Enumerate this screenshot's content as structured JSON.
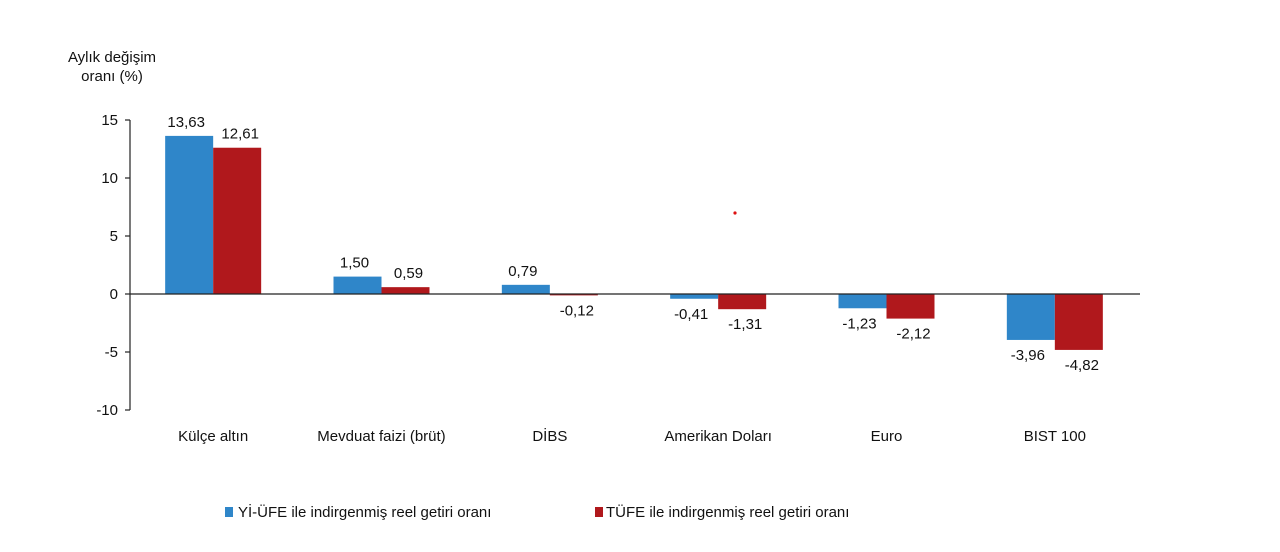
{
  "chart_data": {
    "type": "bar",
    "ylabel_lines": [
      "Aylık değişim",
      "oranı (%)"
    ],
    "categories": [
      "Külçe altın",
      "Mevduat faizi (brüt)",
      "DİBS",
      "Amerikan Doları",
      "Euro",
      "BIST 100"
    ],
    "series": [
      {
        "name": "Yİ-ÜFE ile indirgenmiş reel getiri oranı",
        "color": "#2f86c9",
        "values": [
          13.63,
          1.5,
          0.79,
          -0.41,
          -1.23,
          -3.96
        ],
        "labels": [
          "13,63",
          "1,50",
          "0,79",
          "-0,41",
          "-1,23",
          "-3,96"
        ]
      },
      {
        "name": "TÜFE ile indirgenmiş reel getiri oranı",
        "color": "#b0181c",
        "values": [
          12.61,
          0.59,
          -0.12,
          -1.31,
          -2.12,
          -4.82
        ],
        "labels": [
          "12,61",
          "0,59",
          "-0,12",
          "-1,31",
          "-2,12",
          "-4,82"
        ]
      }
    ],
    "ylim": [
      -10,
      15
    ],
    "yticks": [
      15,
      10,
      5,
      0,
      -5,
      -10
    ],
    "grid": false,
    "legend": "bottom"
  }
}
